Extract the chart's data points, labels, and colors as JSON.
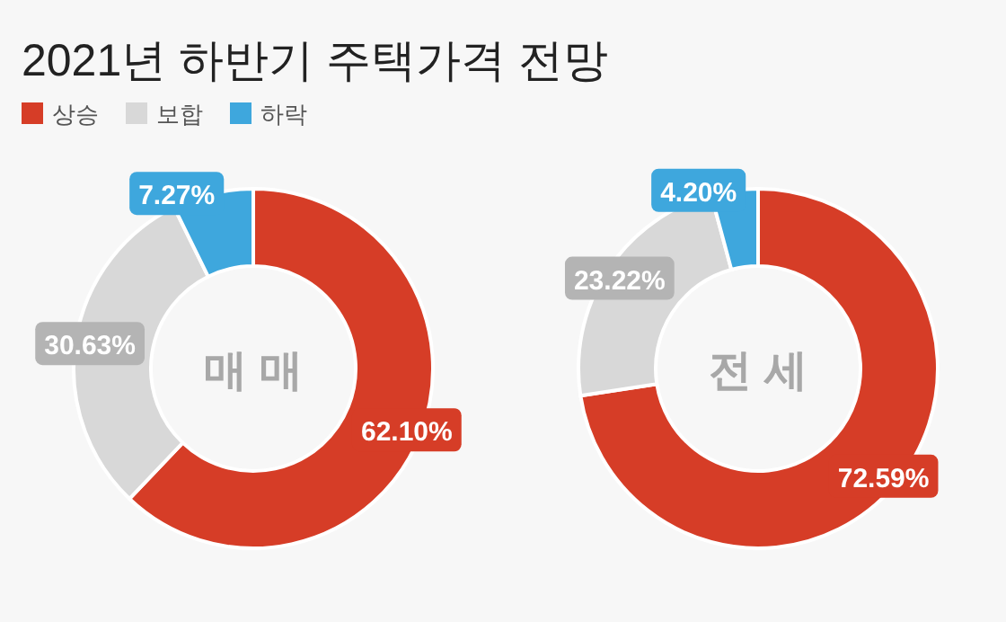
{
  "chart_data": [
    {
      "type": "donut",
      "title": "2021년 하반기 주택가격 전망",
      "legend": "top left",
      "categories": [
        "상승",
        "보합",
        "하락"
      ],
      "values": [
        62.1,
        30.63,
        7.27
      ],
      "colors": [
        "#d63d27",
        "#d8d8d8",
        "#3ea7dd"
      ],
      "value_labels": [
        "62.10%",
        "30.63%",
        "7.27%"
      ],
      "annotations": [
        "매 매"
      ]
    },
    {
      "type": "donut",
      "categories": [
        null,
        null,
        null
      ],
      "values": [
        72.59,
        23.22,
        4.2
      ],
      "colors": [
        "#d63d27",
        "#d8d8d8",
        "#3ea7dd"
      ],
      "value_labels": [
        "72.59%",
        "23.22%",
        "4.20%"
      ],
      "annotations": [
        "전 세"
      ]
    }
  ]
}
